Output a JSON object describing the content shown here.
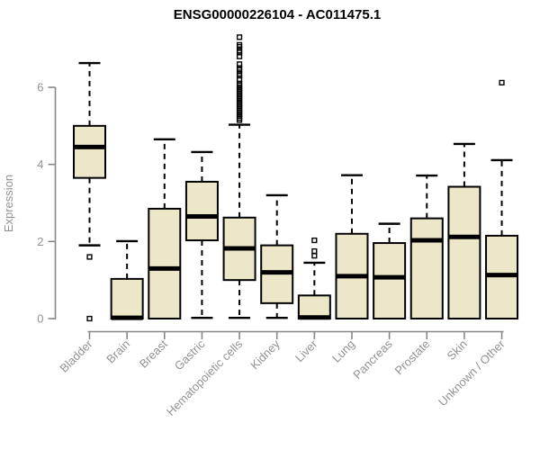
{
  "chart_data": {
    "type": "boxplot",
    "title": "ENSG00000226104 - AC011475.1",
    "ylabel": "Expression",
    "xlabel": "",
    "yticks": [
      0,
      2,
      4,
      6
    ],
    "ylim": [
      -0.35,
      7.45
    ],
    "grid": false,
    "legend": null,
    "categories": [
      "Bladder",
      "Brain",
      "Breast",
      "Gastric",
      "Hematopoietic cells",
      "Kidney",
      "Liver",
      "Lung",
      "Pancreas",
      "Prostate",
      "Skin",
      "Unknown / Other"
    ],
    "boxes": [
      {
        "category": "Bladder",
        "whisker_low": 1.9,
        "q1": 3.65,
        "median": 4.45,
        "q3": 5.0,
        "whisker_high": 6.63,
        "outliers": [
          1.6,
          0.0
        ]
      },
      {
        "category": "Brain",
        "whisker_low": 0,
        "q1": 0,
        "median": 0.02,
        "q3": 1.03,
        "whisker_high": 2.01,
        "outliers": []
      },
      {
        "category": "Breast",
        "whisker_low": 0,
        "q1": 0,
        "median": 1.3,
        "q3": 2.85,
        "whisker_high": 4.65,
        "outliers": []
      },
      {
        "category": "Gastric",
        "whisker_low": 0.02,
        "q1": 2.03,
        "median": 2.65,
        "q3": 3.55,
        "whisker_high": 4.32,
        "outliers": []
      },
      {
        "category": "Hematopoietic cells",
        "whisker_low": 0.02,
        "q1": 1.0,
        "median": 1.82,
        "q3": 2.62,
        "whisker_high": 5.03,
        "outliers": [
          5.15,
          5.2,
          5.25,
          5.3,
          5.35,
          5.4,
          5.45,
          5.5,
          5.55,
          5.6,
          5.65,
          5.7,
          5.75,
          5.8,
          5.85,
          5.9,
          5.95,
          6.0,
          6.05,
          6.1,
          6.2,
          6.3,
          6.35,
          6.45,
          6.5,
          6.6,
          6.8,
          6.9,
          6.95,
          7.05,
          7.1,
          7.3
        ]
      },
      {
        "category": "Kidney",
        "whisker_low": 0.02,
        "q1": 0.4,
        "median": 1.2,
        "q3": 1.9,
        "whisker_high": 3.2,
        "outliers": []
      },
      {
        "category": "Liver",
        "whisker_low": 0,
        "q1": 0,
        "median": 0.03,
        "q3": 0.6,
        "whisker_high": 1.45,
        "outliers": [
          2.03,
          1.75,
          1.63
        ]
      },
      {
        "category": "Lung",
        "whisker_low": 0,
        "q1": 0,
        "median": 1.1,
        "q3": 2.2,
        "whisker_high": 3.72,
        "outliers": []
      },
      {
        "category": "Pancreas",
        "whisker_low": 0,
        "q1": 0,
        "median": 1.07,
        "q3": 1.96,
        "whisker_high": 2.46,
        "outliers": []
      },
      {
        "category": "Prostate",
        "whisker_low": 0,
        "q1": 0,
        "median": 2.03,
        "q3": 2.6,
        "whisker_high": 3.71,
        "outliers": []
      },
      {
        "category": "Skin",
        "whisker_low": 0,
        "q1": 0,
        "median": 2.12,
        "q3": 3.42,
        "whisker_high": 4.53,
        "outliers": []
      },
      {
        "category": "Unknown / Other",
        "whisker_low": 0,
        "q1": 0,
        "median": 1.13,
        "q3": 2.15,
        "whisker_high": 4.11,
        "outliers": [
          6.12
        ]
      }
    ],
    "colors": {
      "box_fill": "#ece7c9",
      "box_border": "#000000",
      "median": "#000000",
      "whisker": "#000000",
      "axis": "#878787",
      "tick_label": "#929292",
      "title": "#000000",
      "background": "#ffffff"
    }
  }
}
